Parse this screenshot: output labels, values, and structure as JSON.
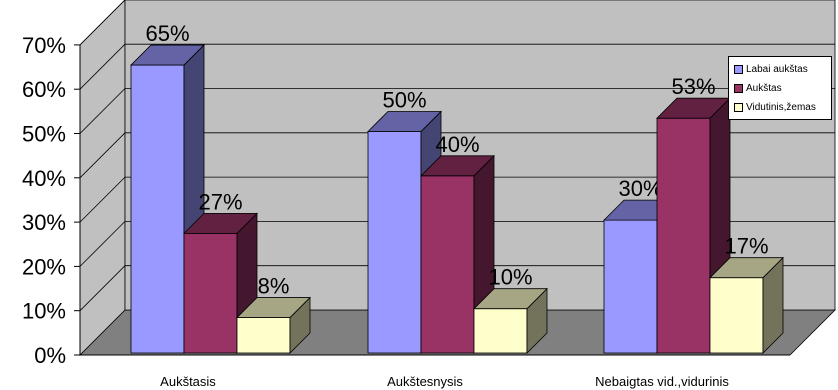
{
  "chart_data": {
    "type": "bar",
    "categories": [
      "Aukštasis",
      "Aukštesnysis",
      "Nebaigtas vid.,vidurinis"
    ],
    "series": [
      {
        "name": "Labai aukštas",
        "values": [
          65,
          50,
          30
        ],
        "color": "#9999ff"
      },
      {
        "name": "Aukštas",
        "values": [
          27,
          40,
          53
        ],
        "color": "#993366"
      },
      {
        "name": "Vidutinis,žemas",
        "values": [
          8,
          10,
          17
        ],
        "color": "#ffffcc"
      }
    ],
    "data_labels": [
      [
        "65%",
        "50%",
        "30%"
      ],
      [
        "27%",
        "40%",
        "53%"
      ],
      [
        "8%",
        "10%",
        "17%"
      ]
    ],
    "y_ticks": [
      "0%",
      "10%",
      "20%",
      "30%",
      "40%",
      "50%",
      "60%",
      "70%"
    ],
    "ylim": [
      0,
      70
    ],
    "grid": true,
    "legend_position": "right",
    "three_d": true
  }
}
